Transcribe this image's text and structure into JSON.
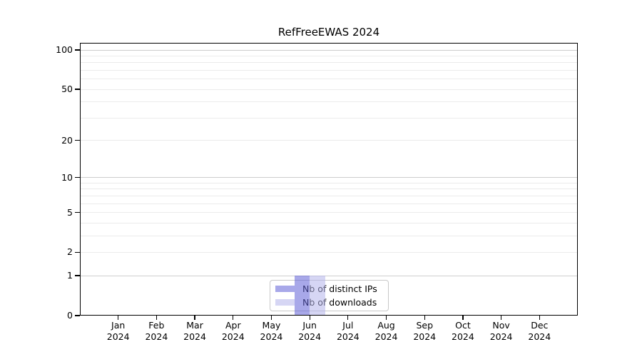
{
  "page": {
    "background_color": "#ffffff"
  },
  "chart_data": {
    "type": "bar",
    "title": "RefFreeEWAS 2024",
    "xlabel": "",
    "ylabel": "",
    "x_months": [
      "Jan",
      "Feb",
      "Mar",
      "Apr",
      "May",
      "Jun",
      "Jul",
      "Aug",
      "Sep",
      "Oct",
      "Nov",
      "Dec"
    ],
    "x_year": "2024",
    "series": [
      {
        "name": "Nb of distinct IPs",
        "values": [
          0,
          0,
          0,
          0,
          0,
          1,
          0,
          0,
          0,
          0,
          0,
          0
        ],
        "legend_color": "#a8a8e9",
        "fill_rgba": "rgba(97,97,215,0.55)"
      },
      {
        "name": "Nb of downloads",
        "values": [
          0,
          0,
          0,
          0,
          0,
          1,
          0,
          0,
          0,
          0,
          0,
          0
        ],
        "legend_color": "#d6d6f4",
        "fill_rgba": "rgba(180,180,235,0.55)"
      }
    ],
    "yticks": [
      0,
      1,
      2,
      5,
      10,
      20,
      50,
      100
    ],
    "ylim": [
      0,
      100
    ],
    "yscale": "log1p",
    "grid": {
      "orientation": "horizontal",
      "major_values": [
        1,
        10,
        100
      ],
      "minor_values": [
        2,
        3,
        4,
        5,
        6,
        7,
        8,
        9,
        20,
        30,
        40,
        50,
        60,
        70,
        80,
        90
      ],
      "major_color": "#cdcdcd",
      "minor_color": "#ebebeb"
    },
    "legend": {
      "position": "inside-bottom-center"
    },
    "axis_color": "#000000"
  }
}
